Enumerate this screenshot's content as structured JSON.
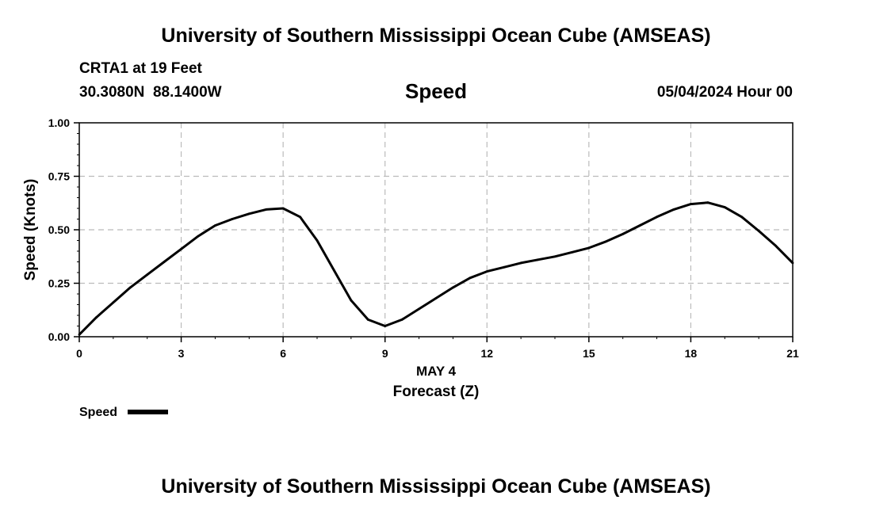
{
  "header": {
    "title": "University of Southern Mississippi Ocean Cube (AMSEAS)",
    "station": "CRTA1 at 19 Feet",
    "coords": "30.3080N  88.1400W",
    "variable": "Speed",
    "date": "05/04/2024 Hour 00"
  },
  "footer": {
    "title": "University of Southern Mississippi Ocean Cube (AMSEAS)"
  },
  "chart_data": {
    "type": "line",
    "title": "Speed",
    "xlabel": "Forecast (Z)",
    "xlabel_date": "MAY 4",
    "ylabel": "Speed (Knots)",
    "xlim": [
      0,
      21
    ],
    "ylim": [
      0,
      1
    ],
    "xticks": [
      0,
      3,
      6,
      9,
      12,
      15,
      18,
      21
    ],
    "xtick_labels": [
      "0",
      "3",
      "6",
      "9",
      "12",
      "15",
      "18",
      "21"
    ],
    "yticks": [
      0,
      0.25,
      0.5,
      0.75,
      1.0
    ],
    "ytick_labels": [
      "0.00",
      "0.25",
      "0.50",
      "0.75",
      "1.00"
    ],
    "grid": true,
    "legend": "bottom-left",
    "series": [
      {
        "name": "Speed",
        "color": "#000000",
        "x": [
          0,
          0.5,
          1,
          1.5,
          2,
          2.5,
          3,
          3.5,
          4,
          4.5,
          5,
          5.5,
          6,
          6.5,
          7,
          7.5,
          8,
          8.5,
          9,
          9.5,
          10,
          10.5,
          11,
          11.5,
          12,
          12.5,
          13,
          13.5,
          14,
          14.5,
          15,
          15.5,
          16,
          16.5,
          17,
          17.5,
          18,
          18.5,
          19,
          19.5,
          20,
          20.5,
          21
        ],
        "values": [
          0.01,
          0.09,
          0.16,
          0.23,
          0.29,
          0.35,
          0.41,
          0.47,
          0.52,
          0.55,
          0.575,
          0.595,
          0.6,
          0.56,
          0.45,
          0.31,
          0.17,
          0.08,
          0.05,
          0.08,
          0.13,
          0.18,
          0.23,
          0.275,
          0.305,
          0.325,
          0.345,
          0.36,
          0.375,
          0.395,
          0.415,
          0.445,
          0.48,
          0.52,
          0.56,
          0.595,
          0.62,
          0.627,
          0.605,
          0.56,
          0.495,
          0.425,
          0.345
        ]
      }
    ]
  }
}
